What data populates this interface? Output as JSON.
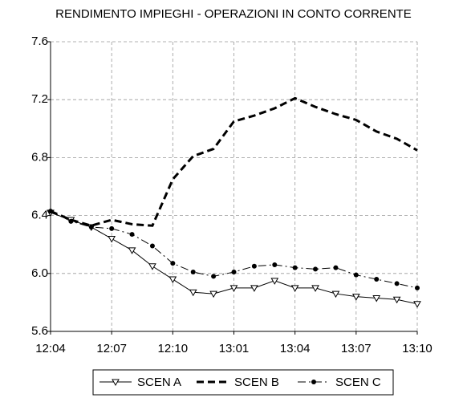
{
  "chart_data": {
    "type": "line",
    "title": "RENDIMENTO IMPIEGHI - OPERAZIONI IN CONTO CORRENTE",
    "categories": [
      "12:04",
      null,
      null,
      "12:07",
      null,
      null,
      "12:10",
      null,
      null,
      "13:01",
      null,
      null,
      "13:04",
      null,
      null,
      "13:07",
      null,
      null,
      "13:10"
    ],
    "series": [
      {
        "name": "SCEN A",
        "color": "#000000",
        "marker": "triangle-down",
        "line": "solid",
        "values": [
          6.42,
          6.37,
          6.32,
          6.24,
          6.16,
          6.05,
          5.96,
          5.87,
          5.86,
          5.9,
          5.9,
          5.95,
          5.9,
          5.9,
          5.86,
          5.84,
          5.83,
          5.82,
          5.79
        ]
      },
      {
        "name": "SCEN B",
        "color": "#000000",
        "marker": "none",
        "line": "dashed",
        "values": [
          6.43,
          6.37,
          6.33,
          6.37,
          6.34,
          6.33,
          6.65,
          6.81,
          6.86,
          7.05,
          7.09,
          7.14,
          7.21,
          7.15,
          7.1,
          7.06,
          6.98,
          6.93,
          6.85
        ]
      },
      {
        "name": "SCEN C",
        "color": "#000000",
        "marker": "dot",
        "line": "dashdot",
        "values": [
          6.43,
          6.36,
          6.32,
          6.31,
          6.27,
          6.19,
          6.07,
          6.01,
          5.98,
          6.01,
          6.05,
          6.06,
          6.04,
          6.03,
          6.04,
          5.99,
          5.96,
          5.93,
          5.9
        ]
      }
    ],
    "ylim": [
      5.6,
      7.6
    ],
    "yticks": [
      5.6,
      {
        "value": 6,
        "label": "6.0"
      },
      6.4,
      6.8,
      7.2,
      7.6
    ],
    "grid": true,
    "legend": "bottom"
  }
}
